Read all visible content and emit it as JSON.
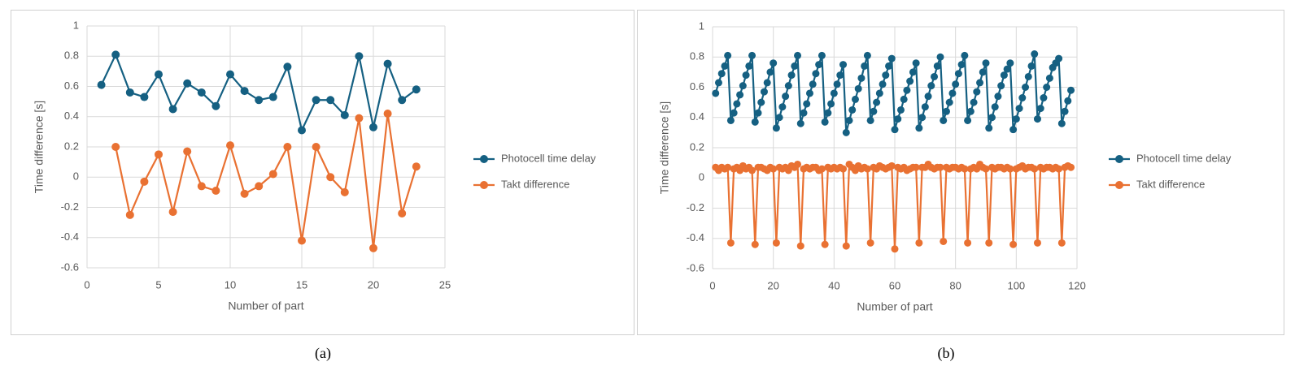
{
  "chart_data": [
    {
      "type": "line",
      "caption": "(a)",
      "xlabel": "Number of part",
      "ylabel": "Time difference [s]",
      "x": [
        1,
        2,
        3,
        4,
        5,
        6,
        7,
        8,
        9,
        10,
        11,
        12,
        13,
        14,
        15,
        16,
        17,
        18,
        19,
        20,
        21,
        22,
        23
      ],
      "series": [
        {
          "name": "Photocell time delay",
          "color": "#156082",
          "values": [
            0.61,
            0.81,
            0.56,
            0.53,
            0.68,
            0.45,
            0.62,
            0.56,
            0.47,
            0.68,
            0.57,
            0.51,
            0.53,
            0.73,
            0.31,
            0.51,
            0.51,
            0.41,
            0.8,
            0.33,
            0.75,
            0.51,
            0.58
          ]
        },
        {
          "name": "Takt difference",
          "color": "#E97132",
          "values": [
            null,
            0.2,
            -0.25,
            -0.03,
            0.15,
            -0.23,
            0.17,
            -0.06,
            -0.09,
            0.21,
            -0.11,
            -0.06,
            0.02,
            0.2,
            -0.42,
            0.2,
            0.0,
            -0.1,
            0.39,
            -0.47,
            0.42,
            -0.24,
            0.07
          ]
        }
      ],
      "xlim": [
        0,
        25
      ],
      "xticks": [
        0,
        5,
        10,
        15,
        20,
        25
      ],
      "ylim": [
        -0.6,
        1
      ],
      "yticks": [
        -0.6,
        -0.4,
        -0.2,
        0,
        0.2,
        0.4,
        0.6,
        0.8,
        1
      ],
      "grid": true,
      "legend": "right"
    },
    {
      "type": "line",
      "caption": "(b)",
      "xlabel": "Number of part",
      "ylabel": "Time difference [s]",
      "x": [
        1,
        2,
        3,
        4,
        5,
        6,
        7,
        8,
        9,
        10,
        11,
        12,
        13,
        14,
        15,
        16,
        17,
        18,
        19,
        20,
        21,
        22,
        23,
        24,
        25,
        26,
        27,
        28,
        29,
        30,
        31,
        32,
        33,
        34,
        35,
        36,
        37,
        38,
        39,
        40,
        41,
        42,
        43,
        44,
        45,
        46,
        47,
        48,
        49,
        50,
        51,
        52,
        53,
        54,
        55,
        56,
        57,
        58,
        59,
        60,
        61,
        62,
        63,
        64,
        65,
        66,
        67,
        68,
        69,
        70,
        71,
        72,
        73,
        74,
        75,
        76,
        77,
        78,
        79,
        80,
        81,
        82,
        83,
        84,
        85,
        86,
        87,
        88,
        89,
        90,
        91,
        92,
        93,
        94,
        95,
        96,
        97,
        98,
        99,
        100,
        101,
        102,
        103,
        104,
        105,
        106,
        107,
        108,
        109,
        110,
        111,
        112,
        113,
        114,
        115,
        116,
        117,
        118
      ],
      "series": [
        {
          "name": "Photocell time delay",
          "color": "#156082",
          "values": [
            0.56,
            0.63,
            0.69,
            0.74,
            0.81,
            0.38,
            0.43,
            0.49,
            0.55,
            0.61,
            0.68,
            0.74,
            0.81,
            0.37,
            0.43,
            0.5,
            0.57,
            0.63,
            0.7,
            0.76,
            0.33,
            0.4,
            0.47,
            0.54,
            0.61,
            0.68,
            0.74,
            0.81,
            0.36,
            0.43,
            0.49,
            0.56,
            0.62,
            0.69,
            0.75,
            0.81,
            0.37,
            0.43,
            0.49,
            0.56,
            0.62,
            0.68,
            0.75,
            0.3,
            0.38,
            0.45,
            0.52,
            0.59,
            0.66,
            0.74,
            0.81,
            0.38,
            0.44,
            0.5,
            0.56,
            0.62,
            0.68,
            0.74,
            0.79,
            0.32,
            0.39,
            0.45,
            0.52,
            0.58,
            0.64,
            0.7,
            0.76,
            0.33,
            0.4,
            0.47,
            0.54,
            0.61,
            0.67,
            0.74,
            0.8,
            0.38,
            0.44,
            0.5,
            0.56,
            0.62,
            0.69,
            0.75,
            0.81,
            0.38,
            0.44,
            0.5,
            0.57,
            0.63,
            0.7,
            0.76,
            0.33,
            0.4,
            0.47,
            0.54,
            0.61,
            0.68,
            0.72,
            0.76,
            0.32,
            0.39,
            0.46,
            0.53,
            0.6,
            0.67,
            0.74,
            0.82,
            0.39,
            0.46,
            0.53,
            0.6,
            0.66,
            0.73,
            0.76,
            0.79,
            0.36,
            0.44,
            0.51,
            0.58
          ]
        },
        {
          "name": "Takt difference",
          "color": "#E97132",
          "values": [
            0.07,
            0.05,
            0.07,
            0.06,
            0.07,
            -0.43,
            0.06,
            0.07,
            0.05,
            0.08,
            0.06,
            0.07,
            0.05,
            -0.44,
            0.07,
            0.07,
            0.06,
            0.05,
            0.07,
            0.06,
            -0.43,
            0.07,
            0.06,
            0.07,
            0.05,
            0.08,
            0.07,
            0.09,
            -0.45,
            0.06,
            0.07,
            0.06,
            0.07,
            0.07,
            0.05,
            0.06,
            -0.44,
            0.07,
            0.06,
            0.07,
            0.06,
            0.07,
            0.06,
            -0.45,
            0.09,
            0.07,
            0.05,
            0.08,
            0.06,
            0.07,
            0.06,
            -0.43,
            0.07,
            0.06,
            0.08,
            0.07,
            0.06,
            0.07,
            0.08,
            -0.47,
            0.07,
            0.06,
            0.07,
            0.05,
            0.06,
            0.07,
            0.07,
            -0.43,
            0.07,
            0.07,
            0.09,
            0.07,
            0.06,
            0.07,
            0.07,
            -0.42,
            0.07,
            0.06,
            0.07,
            0.07,
            0.06,
            0.07,
            0.06,
            -0.43,
            0.06,
            0.07,
            0.06,
            0.09,
            0.07,
            0.06,
            -0.43,
            0.07,
            0.06,
            0.07,
            0.07,
            0.06,
            0.07,
            0.06,
            -0.44,
            0.06,
            0.07,
            0.08,
            0.06,
            0.07,
            0.07,
            0.06,
            -0.43,
            0.07,
            0.06,
            0.07,
            0.07,
            0.06,
            0.07,
            0.06,
            -0.43,
            0.07,
            0.08,
            0.07
          ]
        }
      ],
      "xlim": [
        0,
        120
      ],
      "xticks": [
        0,
        20,
        40,
        60,
        80,
        100,
        120
      ],
      "ylim": [
        -0.6,
        1
      ],
      "yticks": [
        -0.6,
        -0.4,
        -0.2,
        0,
        0.2,
        0.4,
        0.6,
        0.8,
        1
      ],
      "grid": true,
      "legend": "right"
    }
  ]
}
